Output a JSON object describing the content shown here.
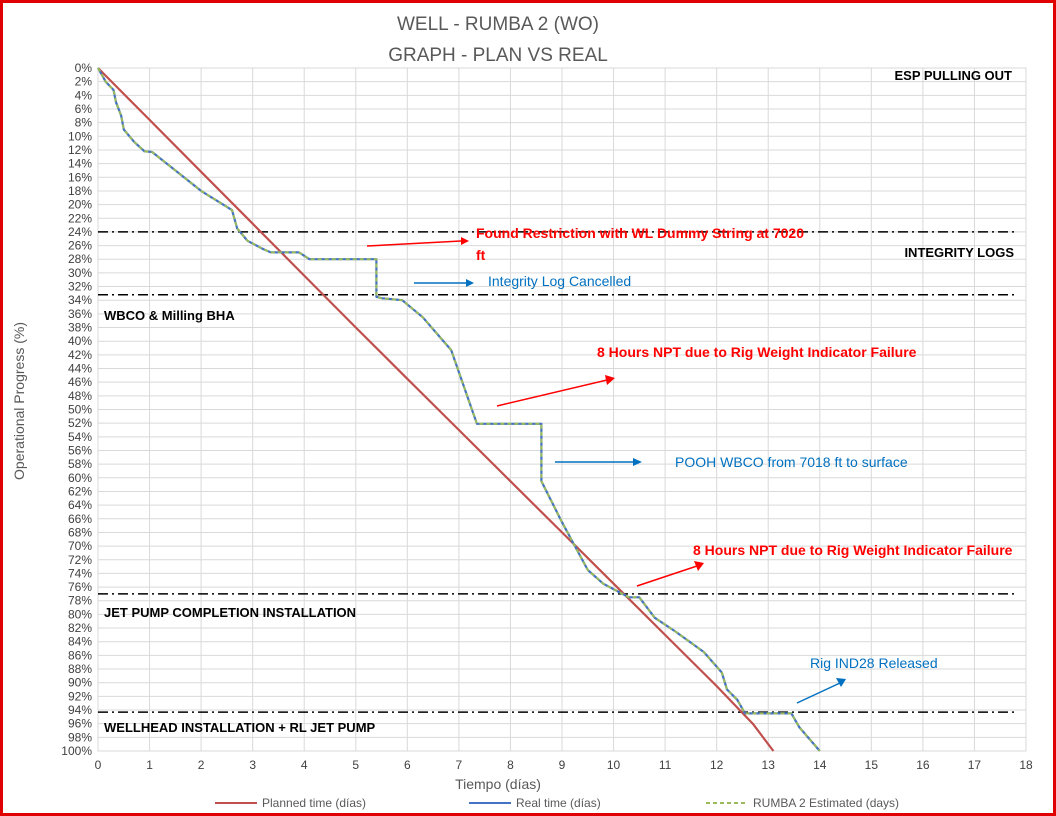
{
  "chart_data": {
    "type": "line",
    "title": "WELL -  RUMBA 2 (WO)",
    "subtitle": "GRAPH  - PLAN VS REAL",
    "xlabel": "Tiempo (días)",
    "ylabel": "Operational Progress (%)",
    "xlim": [
      0,
      18
    ],
    "ylim": [
      0,
      100
    ],
    "y_reversed": true,
    "x_ticks": [
      "0",
      "1",
      "2",
      "3",
      "4",
      "5",
      "6",
      "7",
      "8",
      "9",
      "10",
      "11",
      "12",
      "13",
      "14",
      "15",
      "16",
      "17",
      "18"
    ],
    "y_ticks": [
      "0%",
      "2%",
      "4%",
      "6%",
      "8%",
      "10%",
      "12%",
      "14%",
      "16%",
      "18%",
      "20%",
      "22%",
      "24%",
      "26%",
      "28%",
      "30%",
      "32%",
      "34%",
      "36%",
      "38%",
      "40%",
      "42%",
      "44%",
      "46%",
      "48%",
      "50%",
      "52%",
      "54%",
      "56%",
      "58%",
      "60%",
      "62%",
      "64%",
      "66%",
      "68%",
      "70%",
      "72%",
      "74%",
      "76%",
      "78%",
      "80%",
      "82%",
      "84%",
      "86%",
      "88%",
      "90%",
      "92%",
      "94%",
      "96%",
      "98%",
      "100%"
    ],
    "grid": true,
    "legend_position": "bottom",
    "series": [
      {
        "name": "Planned time (días)",
        "color": "#c0504d",
        "dashed": false,
        "points": [
          [
            0,
            0
          ],
          [
            1,
            7.6
          ],
          [
            2,
            15.2
          ],
          [
            3,
            22.8
          ],
          [
            4,
            30.4
          ],
          [
            5,
            38
          ],
          [
            6,
            45.5
          ],
          [
            7,
            53
          ],
          [
            8,
            60.5
          ],
          [
            9,
            68
          ],
          [
            10,
            75.5
          ],
          [
            11,
            83
          ],
          [
            12,
            90.5
          ],
          [
            12.7,
            96
          ],
          [
            13.1,
            100
          ]
        ]
      },
      {
        "name": "Real time (días)",
        "color": "#4472c4",
        "dashed": false,
        "points": [
          [
            0,
            0
          ],
          [
            0.15,
            2
          ],
          [
            0.3,
            3.2
          ],
          [
            0.35,
            5
          ],
          [
            0.45,
            7
          ],
          [
            0.5,
            9
          ],
          [
            0.7,
            10.8
          ],
          [
            0.9,
            12.2
          ],
          [
            1.05,
            12.3
          ],
          [
            1.5,
            15
          ],
          [
            2.0,
            18
          ],
          [
            2.6,
            20.8
          ],
          [
            2.7,
            23.5
          ],
          [
            2.9,
            25.3
          ],
          [
            3.2,
            26.5
          ],
          [
            3.35,
            27
          ],
          [
            3.9,
            27
          ],
          [
            4.1,
            28
          ],
          [
            5.4,
            28
          ],
          [
            5.4,
            33.5
          ],
          [
            5.5,
            33.7
          ],
          [
            5.9,
            34
          ],
          [
            6.3,
            36.5
          ],
          [
            6.85,
            41.3
          ],
          [
            7.35,
            52.1
          ],
          [
            8.6,
            52.1
          ],
          [
            8.6,
            60.5
          ],
          [
            9.0,
            66.5
          ],
          [
            9.5,
            73.5
          ],
          [
            9.8,
            75.5
          ],
          [
            10.05,
            76.5
          ],
          [
            10.3,
            77.5
          ],
          [
            10.5,
            77.5
          ],
          [
            10.8,
            80.5
          ],
          [
            11.2,
            82.5
          ],
          [
            11.75,
            85.5
          ],
          [
            12.1,
            88.5
          ],
          [
            12.2,
            91
          ],
          [
            12.4,
            92.5
          ],
          [
            12.55,
            94.5
          ],
          [
            13.45,
            94.5
          ],
          [
            13.6,
            96.5
          ],
          [
            14.0,
            100
          ]
        ]
      },
      {
        "name": "RUMBA 2 Estimated (days)",
        "color": "#9bbb59",
        "dashed": true,
        "points": [
          [
            0,
            0
          ],
          [
            0.15,
            2
          ],
          [
            0.3,
            3.2
          ],
          [
            0.35,
            5
          ],
          [
            0.45,
            7
          ],
          [
            0.5,
            9
          ],
          [
            0.7,
            10.8
          ],
          [
            0.9,
            12.2
          ],
          [
            1.05,
            12.3
          ],
          [
            1.5,
            15
          ],
          [
            2.0,
            18
          ],
          [
            2.6,
            20.8
          ],
          [
            2.7,
            23.5
          ],
          [
            2.9,
            25.3
          ],
          [
            3.2,
            26.5
          ],
          [
            3.35,
            27
          ],
          [
            3.9,
            27
          ],
          [
            4.1,
            28
          ],
          [
            5.4,
            28
          ],
          [
            5.4,
            33.5
          ],
          [
            5.5,
            33.7
          ],
          [
            5.9,
            34
          ],
          [
            6.3,
            36.5
          ],
          [
            6.85,
            41.3
          ],
          [
            7.35,
            52.1
          ],
          [
            8.6,
            52.1
          ],
          [
            8.6,
            60.5
          ],
          [
            9.0,
            66.5
          ],
          [
            9.5,
            73.5
          ],
          [
            9.8,
            75.5
          ],
          [
            10.05,
            76.5
          ],
          [
            10.3,
            77.5
          ],
          [
            10.5,
            77.5
          ],
          [
            10.8,
            80.5
          ],
          [
            11.2,
            82.5
          ],
          [
            11.75,
            85.5
          ],
          [
            12.1,
            88.5
          ],
          [
            12.2,
            91
          ],
          [
            12.4,
            92.5
          ],
          [
            12.55,
            94.5
          ],
          [
            13.45,
            94.5
          ],
          [
            13.6,
            96.5
          ],
          [
            14.0,
            100
          ]
        ]
      }
    ],
    "phase_lines": [
      24,
      33.2,
      77,
      94.3
    ],
    "phase_labels": [
      {
        "text": "ESP PULLING OUT"
      },
      {
        "text": "INTEGRITY LOGS"
      },
      {
        "text": "WBCO & Milling BHA"
      },
      {
        "text": "JET PUMP COMPLETION INSTALLATION"
      },
      {
        "text": "WELLHEAD INSTALLATION + RL JET PUMP"
      }
    ],
    "annotations": [
      {
        "text": "Found Restriction with WL Dummy String at 7020",
        "text2": "ft",
        "color": "#ff0000"
      },
      {
        "text": "Integrity Log Cancelled",
        "color": "#0070c0"
      },
      {
        "text": "8 Hours NPT due to Rig Weight Indicator Failure",
        "color": "#ff0000"
      },
      {
        "text": "POOH WBCO from 7018 ft to surface",
        "color": "#0070c0"
      },
      {
        "text": "8 Hours NPT due to Rig Weight Indicator Failure",
        "color": "#ff0000"
      },
      {
        "text": "Rig IND28 Released",
        "color": "#0070c0"
      }
    ]
  }
}
